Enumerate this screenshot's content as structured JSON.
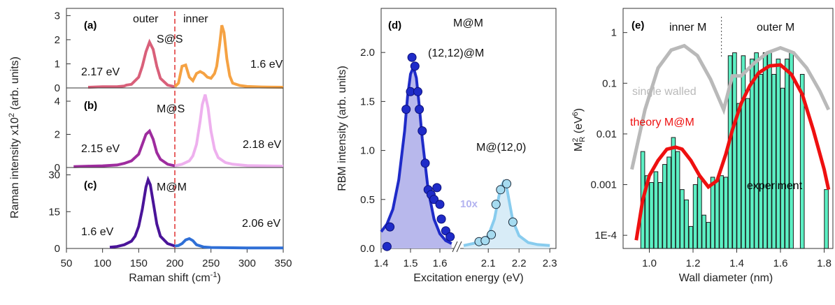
{
  "colors": {
    "outer_a": "#d9607a",
    "inner_a": "#f5a243",
    "outer_b": "#9e2c9e",
    "inner_b": "#eeb0ee",
    "outer_c": "#4a1499",
    "inner_c": "#2f6fd6",
    "divider": "#e03030",
    "d_m": "#1f2bc8",
    "d_m_fill": "#b8b8ec",
    "d_z": "#88ccee",
    "d_z_fill": "#d8ecf7",
    "d_z_marker": "#a6dbf0",
    "bars": "#5cf0c4",
    "sw_curve": "#b9b9b9",
    "theory": "#ee1010"
  },
  "chart_data": [
    {
      "panel": "a",
      "type": "line",
      "label": "(a)",
      "annotations": [
        "outer",
        "inner",
        "S@S"
      ],
      "outer_energy": "2.17 eV",
      "inner_energy": "1.6 eV",
      "yticks": [
        "0",
        "1",
        "2",
        "3"
      ],
      "ylim": [
        0,
        3.3
      ],
      "xlim": [
        50,
        350
      ],
      "divider_x": 200,
      "series": [
        {
          "segment": "outer",
          "x": [
            80,
            100,
            120,
            130,
            133,
            140,
            150,
            155,
            160,
            165,
            170,
            175,
            180,
            190,
            200
          ],
          "y": [
            0.03,
            0.05,
            0.05,
            0.08,
            0.12,
            0.15,
            0.45,
            0.9,
            1.5,
            1.9,
            1.6,
            0.9,
            0.4,
            0.12,
            0.05
          ]
        },
        {
          "segment": "inner",
          "x": [
            200,
            205,
            210,
            215,
            220,
            225,
            230,
            235,
            240,
            245,
            250,
            255,
            258,
            262,
            265,
            268,
            272,
            276,
            280,
            290,
            300,
            320,
            350
          ],
          "y": [
            0.05,
            0.2,
            0.9,
            0.95,
            0.45,
            0.3,
            0.6,
            0.68,
            0.6,
            0.45,
            0.4,
            0.6,
            0.9,
            1.8,
            2.6,
            2.3,
            1.2,
            0.5,
            0.2,
            0.1,
            0.06,
            0.04,
            0.03
          ]
        }
      ]
    },
    {
      "panel": "b",
      "type": "line",
      "label": "(b)",
      "annotations": [
        "M@S"
      ],
      "outer_energy": "2.15 eV",
      "inner_energy": "2.18 eV",
      "yticks": [
        "0",
        "2",
        "4"
      ],
      "ylim": [
        0,
        4.8
      ],
      "xlim": [
        50,
        350
      ],
      "divider_x": 200,
      "series": [
        {
          "segment": "outer",
          "x": [
            60,
            80,
            100,
            120,
            130,
            140,
            150,
            155,
            160,
            165,
            170,
            175,
            180,
            190,
            200
          ],
          "y": [
            0.05,
            0.08,
            0.1,
            0.15,
            0.25,
            0.4,
            0.8,
            1.4,
            2.0,
            2.2,
            1.7,
            0.9,
            0.5,
            0.2,
            0.1
          ]
        },
        {
          "segment": "inner",
          "x": [
            200,
            210,
            220,
            225,
            230,
            235,
            238,
            242,
            246,
            250,
            255,
            260,
            270,
            280,
            300,
            320,
            350
          ],
          "y": [
            0.1,
            0.2,
            0.4,
            0.7,
            1.4,
            2.8,
            3.8,
            4.4,
            3.6,
            2.2,
            1.1,
            0.6,
            0.3,
            0.2,
            0.12,
            0.1,
            0.08
          ]
        }
      ]
    },
    {
      "panel": "c",
      "type": "line",
      "label": "(c)",
      "annotations": [
        "M@M"
      ],
      "outer_energy": "1.6 eV",
      "inner_energy": "2.06 eV",
      "yticks": [
        "0",
        "15",
        "30"
      ],
      "ylim": [
        0,
        33
      ],
      "xlim": [
        50,
        350
      ],
      "divider_x": 200,
      "xticks": [
        "50",
        "100",
        "150",
        "200",
        "250",
        "300",
        "350"
      ],
      "xlabel": "Raman shift (cm",
      "xlabel_sup": "-1",
      "xlabel_end": ")",
      "series": [
        {
          "segment": "outer",
          "x": [
            110,
            120,
            130,
            140,
            145,
            150,
            155,
            160,
            163,
            166,
            170,
            175,
            180,
            190,
            200
          ],
          "y": [
            0.5,
            0.8,
            1.5,
            3,
            5,
            9,
            16,
            25,
            28,
            26,
            19,
            10,
            5,
            2,
            1
          ]
        },
        {
          "segment": "inner",
          "x": [
            200,
            205,
            210,
            215,
            220,
            225,
            230,
            240,
            250,
            270,
            300,
            350
          ],
          "y": [
            1,
            1.2,
            2,
            3.5,
            4,
            3.2,
            1.5,
            0.6,
            0.4,
            0.3,
            0.2,
            0.2
          ]
        }
      ]
    },
    {
      "panel": "d",
      "type": "scatter",
      "label": "(d)",
      "title": "M@M",
      "ylabel": "RBM intensity (arb. units)",
      "xlabel": "Excitation energy (eV)",
      "yticks": [
        "0.0",
        "0.5",
        "1.0",
        "1.5",
        "2.0"
      ],
      "ylim": [
        0,
        2.45
      ],
      "xticks_left": [
        "1.4",
        "1.5",
        "1.6"
      ],
      "xticks_right": [
        "2.1",
        "2.2",
        "2.3"
      ],
      "xlim_left": [
        1.4,
        1.65
      ],
      "xlim_right": [
        2.02,
        2.32
      ],
      "series": [
        {
          "name": "(12,12)@M",
          "points_x": [
            1.42,
            1.43,
            1.485,
            1.5,
            1.505,
            1.515,
            1.525,
            1.53,
            1.54,
            1.55,
            1.56,
            1.57,
            1.58,
            1.59,
            1.6,
            1.605,
            1.62,
            1.635
          ],
          "points_y": [
            0.02,
            0.22,
            1.42,
            1.6,
            1.95,
            1.86,
            1.6,
            1.42,
            1.2,
            0.87,
            0.6,
            0.55,
            0.5,
            0.62,
            0.45,
            0.3,
            0.18,
            0.12
          ],
          "fit_x": [
            1.4,
            1.42,
            1.44,
            1.46,
            1.48,
            1.49,
            1.5,
            1.51,
            1.52,
            1.53,
            1.54,
            1.56,
            1.58,
            1.6,
            1.62,
            1.64
          ],
          "fit_y": [
            0.17,
            0.25,
            0.4,
            0.7,
            1.2,
            1.55,
            1.78,
            1.85,
            1.74,
            1.45,
            1.12,
            0.6,
            0.3,
            0.15,
            0.08,
            0.05
          ]
        },
        {
          "name": "M@(12,0)",
          "scale": "10x",
          "points_x": [
            2.07,
            2.09,
            2.11,
            2.125,
            2.14,
            2.16,
            2.18
          ],
          "points_y": [
            0.07,
            0.08,
            0.14,
            0.45,
            0.6,
            0.66,
            0.27
          ],
          "fit_x": [
            2.02,
            2.05,
            2.08,
            2.1,
            2.12,
            2.13,
            2.14,
            2.15,
            2.16,
            2.17,
            2.18,
            2.2,
            2.23,
            2.26,
            2.3
          ],
          "fit_y": [
            0.03,
            0.05,
            0.08,
            0.13,
            0.3,
            0.46,
            0.62,
            0.68,
            0.62,
            0.45,
            0.28,
            0.13,
            0.06,
            0.04,
            0.03
          ]
        }
      ]
    },
    {
      "panel": "e",
      "type": "bar",
      "label": "(e)",
      "annotations": [
        "inner M",
        "outer M",
        "single walled",
        "theory M@M",
        "experiment"
      ],
      "xlabel": "Wall diameter (nm)",
      "ylabel_main": "M",
      "ylabel_sup": "2",
      "ylabel_sub": "R",
      "ylabel_unit": " (eV",
      "ylabel_unit_sup": "6",
      "ylabel_end": ")",
      "yticks": [
        "1E-4",
        "0.001",
        "0.01",
        "0.1",
        "1"
      ],
      "ylim_log": [
        5.5e-05,
        3
      ],
      "xticks": [
        "1.0",
        "1.2",
        "1.4",
        "1.6",
        "1.8"
      ],
      "xlim": [
        0.88,
        1.84
      ],
      "divider_x": 1.33,
      "bars": {
        "x": [
          0.97,
          0.99,
          1.01,
          1.03,
          1.05,
          1.07,
          1.09,
          1.11,
          1.13,
          1.15,
          1.17,
          1.19,
          1.21,
          1.23,
          1.25,
          1.27,
          1.29,
          1.31,
          1.33,
          1.35,
          1.37,
          1.39,
          1.41,
          1.43,
          1.45,
          1.47,
          1.49,
          1.51,
          1.53,
          1.55,
          1.57,
          1.59,
          1.61,
          1.63,
          1.65,
          1.7,
          1.81
        ],
        "values": [
          0.0045,
          0.0015,
          0.0011,
          0.0018,
          0.0011,
          0.0025,
          0.0035,
          0.0085,
          0.0045,
          0.0008,
          0.0005,
          0.00015,
          0.001,
          0.0014,
          0.00025,
          0.00018,
          0.0014,
          0.0012,
          0.0015,
          0.0014,
          0.35,
          0.4,
          0.04,
          0.35,
          0.05,
          0.3,
          0.4,
          0.15,
          0.4,
          0.4,
          0.15,
          0.3,
          0.08,
          0.3,
          0.4,
          0.15,
          0.0008
        ],
        "width": 0.018
      },
      "series": [
        {
          "name": "single walled",
          "x": [
            0.92,
            0.98,
            1.04,
            1.1,
            1.16,
            1.22,
            1.28,
            1.34,
            1.38,
            1.42,
            1.48,
            1.54,
            1.6,
            1.66,
            1.72,
            1.78,
            1.82
          ],
          "y": [
            0.002,
            0.03,
            0.2,
            0.45,
            0.55,
            0.35,
            0.12,
            0.03,
            0.14,
            0.14,
            0.25,
            0.4,
            0.5,
            0.4,
            0.2,
            0.07,
            0.03
          ]
        },
        {
          "name": "theory M@M",
          "x": [
            0.94,
            0.97,
            1.0,
            1.04,
            1.08,
            1.12,
            1.15,
            1.19,
            1.23,
            1.27,
            1.31,
            1.35,
            1.38,
            1.42,
            1.46,
            1.5,
            1.55,
            1.6,
            1.65,
            1.7,
            1.75,
            1.8,
            1.82
          ],
          "y": [
            8e-05,
            0.0005,
            0.0015,
            0.003,
            0.005,
            0.0055,
            0.005,
            0.003,
            0.0015,
            0.0009,
            0.0012,
            0.004,
            0.012,
            0.04,
            0.09,
            0.16,
            0.22,
            0.23,
            0.15,
            0.06,
            0.012,
            0.002,
            0.0008
          ]
        }
      ]
    }
  ]
}
